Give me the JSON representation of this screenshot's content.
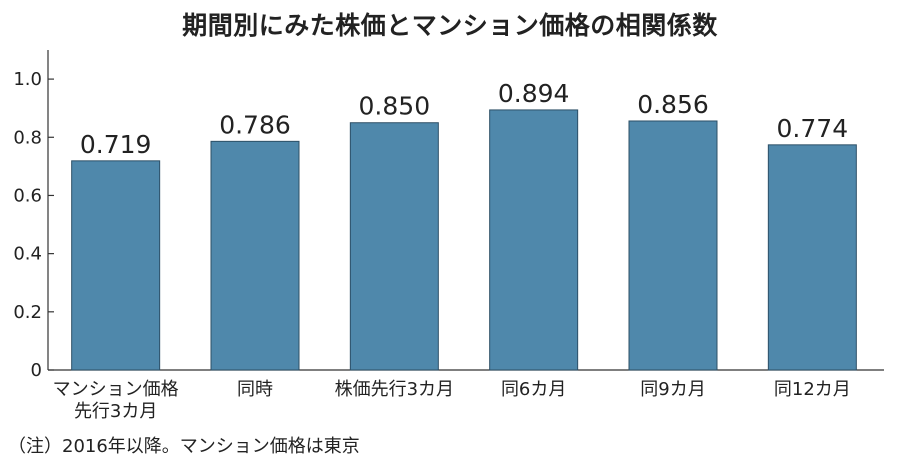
{
  "chart_data": {
    "type": "bar",
    "title": "期間別にみた株価とマンション価格の相関係数",
    "categories": [
      [
        "マンション価格",
        "先行3カ月"
      ],
      [
        "同時"
      ],
      [
        "株価先行3カ月"
      ],
      [
        "同6カ月"
      ],
      [
        "同9カ月"
      ],
      [
        "同12カ月"
      ]
    ],
    "values": [
      0.719,
      0.786,
      0.85,
      0.894,
      0.856,
      0.774
    ],
    "value_labels": [
      "0.719",
      "0.786",
      "0.850",
      "0.894",
      "0.856",
      "0.774"
    ],
    "ylim": [
      0,
      1.1
    ],
    "yticks": [
      0,
      0.2,
      0.4,
      0.6,
      0.8,
      1.0
    ],
    "ytick_labels": [
      "0",
      "0.2",
      "0.4",
      "0.6",
      "0.8",
      "1.0"
    ],
    "xlabel": "",
    "ylabel": "",
    "grid": false,
    "bar_color": "#4f88ab",
    "note": "（注）2016年以降。マンション価格は東京"
  }
}
